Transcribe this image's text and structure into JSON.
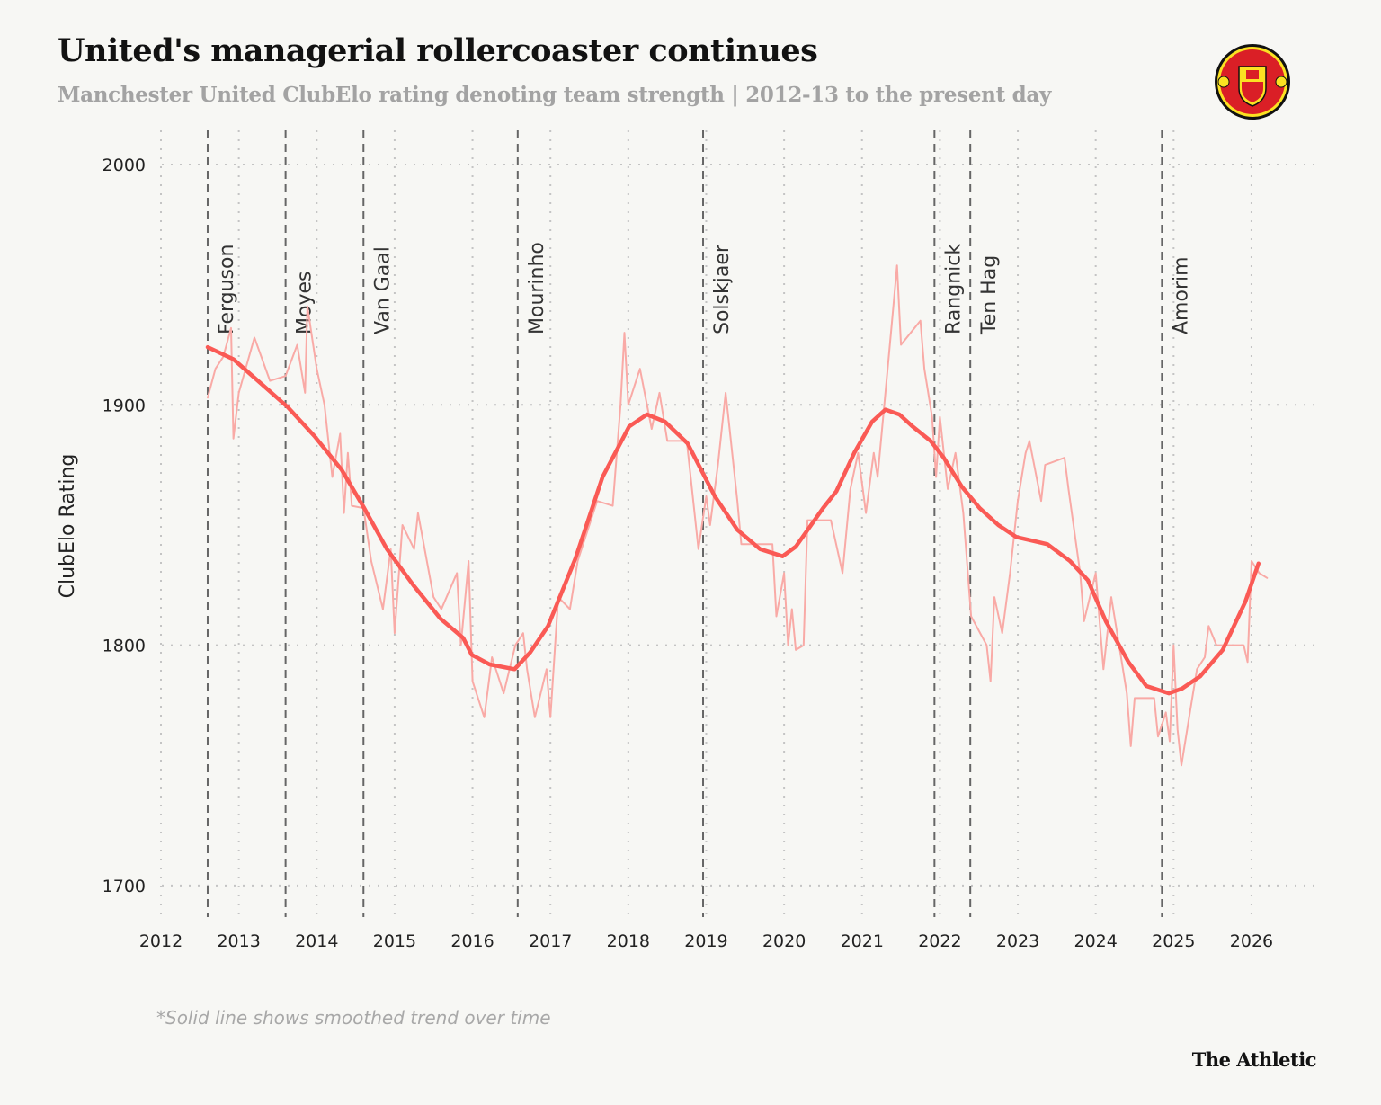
{
  "header": {
    "title": "United's managerial rollercoaster continues",
    "subtitle": "Manchester United ClubElo rating denoting team strength | 2012-13 to the present day"
  },
  "logo": {
    "text_top": "MANCHESTER",
    "text_bottom": "UNITED",
    "colors": {
      "red": "#da1f26",
      "yellow": "#fbe122",
      "black": "#111111"
    }
  },
  "footnote": "*Solid line shows smoothed trend over time",
  "brand": "The Athletic",
  "chart_data": {
    "type": "line",
    "title": "United's managerial rollercoaster continues",
    "subtitle": "Manchester United ClubElo rating denoting team strength | 2012-13 to the present day",
    "xlabel": "",
    "ylabel": "ClubElo Rating",
    "xlim": [
      2012,
      2026.9
    ],
    "ylim": [
      1690,
      2012
    ],
    "x_ticks": [
      2012,
      2013,
      2014,
      2015,
      2016,
      2017,
      2018,
      2019,
      2020,
      2021,
      2022,
      2023,
      2024,
      2025,
      2026
    ],
    "y_ticks": [
      1700,
      1800,
      1900,
      2000
    ],
    "grid": true,
    "colors": {
      "raw": "#f9aaa6",
      "smoothed": "#fa5a55",
      "manager_line": "#666666",
      "grid": "#c4c4c4"
    },
    "managers": [
      {
        "name": "Ferguson",
        "x": 2012.6
      },
      {
        "name": "Moyes",
        "x": 2013.6
      },
      {
        "name": "Van Gaal",
        "x": 2014.6
      },
      {
        "name": "Mourinho",
        "x": 2016.58
      },
      {
        "name": "Solskjaer",
        "x": 2018.96
      },
      {
        "name": "Rangnick",
        "x": 2021.93
      },
      {
        "name": "Ten Hag",
        "x": 2022.39
      },
      {
        "name": "Amorim",
        "x": 2024.85
      }
    ],
    "series": [
      {
        "kind": "raw",
        "x": [
          2012.6,
          2012.7,
          2012.8,
          2012.9,
          2012.93,
          2013.0,
          2013.2,
          2013.4,
          2013.6,
          2013.75,
          2013.85,
          2013.88,
          2014.0,
          2014.1,
          2014.2,
          2014.3,
          2014.35,
          2014.4,
          2014.45,
          2014.6,
          2014.7,
          2014.85,
          2014.95,
          2015.0,
          2015.1,
          2015.25,
          2015.3,
          2015.5,
          2015.6,
          2015.8,
          2015.85,
          2015.95,
          2016.0,
          2016.15,
          2016.25,
          2016.4,
          2016.55,
          2016.65,
          2016.7,
          2016.8,
          2016.95,
          2017.0,
          2017.1,
          2017.25,
          2017.35,
          2017.5,
          2017.6,
          2017.8,
          2017.9,
          2017.95,
          2018.0,
          2018.15,
          2018.3,
          2018.4,
          2018.5,
          2018.75,
          2018.8,
          2018.9,
          2019.0,
          2019.05,
          2019.15,
          2019.25,
          2019.3,
          2019.4,
          2019.45,
          2019.85,
          2019.9,
          2020.0,
          2020.05,
          2020.1,
          2020.15,
          2020.25,
          2020.3,
          2020.6,
          2020.75,
          2020.85,
          2020.95,
          2021.05,
          2021.15,
          2021.2,
          2021.3,
          2021.4,
          2021.45,
          2021.5,
          2021.75,
          2021.8,
          2021.9,
          2021.95,
          2022.0,
          2022.1,
          2022.2,
          2022.3,
          2022.4,
          2022.6,
          2022.65,
          2022.7,
          2022.8,
          2022.9,
          2023.0,
          2023.1,
          2023.15,
          2023.3,
          2023.35,
          2023.6,
          2023.65,
          2023.8,
          2023.85,
          2024.0,
          2024.1,
          2024.2,
          2024.3,
          2024.4,
          2024.45,
          2024.5,
          2024.75,
          2024.8,
          2024.9,
          2024.95,
          2025.0,
          2025.05,
          2025.1,
          2025.2,
          2025.3,
          2025.4,
          2025.45,
          2025.55,
          2025.9,
          2025.95,
          2026.0,
          2026.1,
          2026.2
        ],
        "y": [
          1903,
          1915,
          1920,
          1932,
          1886,
          1905,
          1928,
          1910,
          1912,
          1925,
          1905,
          1941,
          1915,
          1900,
          1870,
          1888,
          1855,
          1880,
          1858,
          1857,
          1835,
          1815,
          1840,
          1805,
          1850,
          1840,
          1855,
          1820,
          1815,
          1830,
          1800,
          1835,
          1785,
          1770,
          1795,
          1780,
          1800,
          1805,
          1790,
          1770,
          1790,
          1770,
          1820,
          1815,
          1835,
          1850,
          1860,
          1858,
          1900,
          1930,
          1900,
          1915,
          1890,
          1905,
          1885,
          1885,
          1870,
          1840,
          1862,
          1850,
          1875,
          1905,
          1890,
          1860,
          1842,
          1842,
          1812,
          1830,
          1800,
          1815,
          1798,
          1800,
          1852,
          1852,
          1830,
          1865,
          1880,
          1855,
          1880,
          1870,
          1905,
          1940,
          1958,
          1925,
          1935,
          1915,
          1895,
          1870,
          1895,
          1865,
          1880,
          1855,
          1812,
          1800,
          1785,
          1820,
          1805,
          1830,
          1860,
          1880,
          1885,
          1860,
          1875,
          1878,
          1865,
          1830,
          1810,
          1830,
          1790,
          1820,
          1800,
          1780,
          1758,
          1778,
          1778,
          1762,
          1772,
          1760,
          1800,
          1765,
          1750,
          1770,
          1790,
          1795,
          1808,
          1800,
          1800,
          1793,
          1835,
          1830,
          1828
        ]
      },
      {
        "kind": "smoothed",
        "x": [
          2012.6,
          2012.93,
          2013.28,
          2013.63,
          2013.97,
          2014.32,
          2014.61,
          2014.9,
          2015.24,
          2015.59,
          2015.88,
          2015.99,
          2016.22,
          2016.54,
          2016.74,
          2016.97,
          2017.32,
          2017.67,
          2018.01,
          2018.24,
          2018.47,
          2018.76,
          2019.11,
          2019.4,
          2019.69,
          2019.98,
          2020.15,
          2020.5,
          2020.67,
          2020.9,
          2021.13,
          2021.3,
          2021.48,
          2021.65,
          2021.88,
          2022.05,
          2022.28,
          2022.51,
          2022.75,
          2022.98,
          2023.38,
          2023.67,
          2023.9,
          2024.13,
          2024.42,
          2024.65,
          2024.94,
          2025.11,
          2025.34,
          2025.63,
          2025.92,
          2026.09
        ],
        "y": [
          1924,
          1919,
          1909,
          1899,
          1887,
          1873,
          1857,
          1840,
          1825,
          1811,
          1803,
          1796,
          1792,
          1790,
          1797,
          1808,
          1836,
          1870,
          1891,
          1896,
          1893,
          1884,
          1862,
          1848,
          1840,
          1837,
          1841,
          1857,
          1864,
          1880,
          1893,
          1898,
          1896,
          1891,
          1885,
          1878,
          1866,
          1857,
          1850,
          1845,
          1842,
          1835,
          1827,
          1810,
          1793,
          1783,
          1780,
          1782,
          1787,
          1798,
          1818,
          1834
        ]
      }
    ]
  }
}
